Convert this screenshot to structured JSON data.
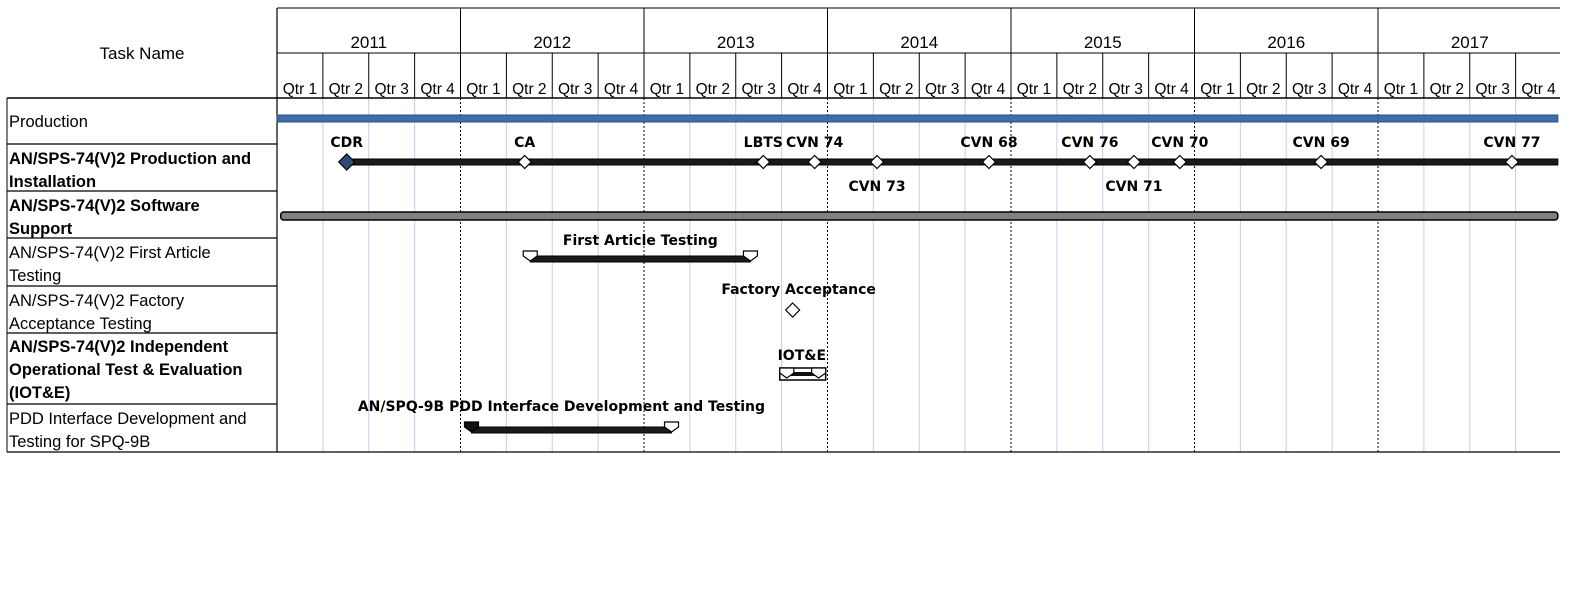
{
  "chart_data": {
    "type": "gantt",
    "header": {
      "task_name_label": "Task Name",
      "years": [
        "2011",
        "2012",
        "2013",
        "2014",
        "2015",
        "2016",
        "2017"
      ],
      "quarter_labels": [
        "Qtr 1",
        "Qtr 2",
        "Qtr 3",
        "Qtr 4"
      ]
    },
    "tasks": [
      {
        "name_lines": [
          "Production"
        ],
        "bold": false
      },
      {
        "name_lines": [
          "AN/SPS-74(V)2 Production and",
          "Installation"
        ],
        "bold": true
      },
      {
        "name_lines": [
          "AN/SPS-74(V)2 Software",
          "Support"
        ],
        "bold": true
      },
      {
        "name_lines": [
          "AN/SPS-74(V)2 First Article",
          "Testing"
        ],
        "bold": false
      },
      {
        "name_lines": [
          "AN/SPS-74(V)2 Factory",
          "Acceptance Testing"
        ],
        "bold": false
      },
      {
        "name_lines": [
          "AN/SPS-74(V)2 Independent",
          "Operational Test & Evaluation",
          "(IOT&E)"
        ],
        "bold": true
      },
      {
        "name_lines": [
          "PDD Interface Development and",
          "Testing for SPQ-9B"
        ],
        "bold": false
      }
    ],
    "bars": [
      {
        "task": 0,
        "start": 2011.0,
        "end": 2017.98,
        "style": "blue"
      },
      {
        "task": 1,
        "start": 2011.36,
        "end": 2017.98,
        "style": "summary"
      },
      {
        "task": 2,
        "start": 2011.02,
        "end": 2017.98,
        "style": "summary-gray"
      },
      {
        "task": 3,
        "start": 2012.38,
        "end": 2013.58,
        "style": "range",
        "label": "First Article Testing",
        "label_at": 2012.98
      },
      {
        "task": 5,
        "start": 2013.74,
        "end": 2013.99,
        "style": "short",
        "label": "IOT&E",
        "label_at": 2013.86
      },
      {
        "task": 6,
        "start": 2012.06,
        "end": 2013.15,
        "style": "range-left-filled",
        "label": "AN/SPQ-9B PDD Interface Development and Testing",
        "label_at": 2012.55
      }
    ],
    "milestones": [
      {
        "task": 1,
        "x": 2011.38,
        "label": "CDR",
        "label_pos": "above",
        "filled": true
      },
      {
        "task": 1,
        "x": 2012.35,
        "label": "CA",
        "label_pos": "above"
      },
      {
        "task": 1,
        "x": 2013.65,
        "label": "LBTS",
        "label_pos": "above"
      },
      {
        "task": 1,
        "x": 2013.93,
        "label": "CVN 74",
        "label_pos": "above"
      },
      {
        "task": 1,
        "x": 2014.27,
        "label": "CVN 73",
        "label_pos": "below"
      },
      {
        "task": 1,
        "x": 2014.88,
        "label": "CVN 68",
        "label_pos": "above"
      },
      {
        "task": 1,
        "x": 2015.43,
        "label": "CVN 76",
        "label_pos": "above"
      },
      {
        "task": 1,
        "x": 2015.67,
        "label": "CVN 71",
        "label_pos": "below"
      },
      {
        "task": 1,
        "x": 2015.92,
        "label": "CVN 70",
        "label_pos": "above"
      },
      {
        "task": 1,
        "x": 2016.69,
        "label": "CVN 69",
        "label_pos": "above"
      },
      {
        "task": 1,
        "x": 2017.73,
        "label": "CVN 77",
        "label_pos": "above"
      },
      {
        "task": 4,
        "x": 2013.81,
        "label": "Factory Acceptance",
        "label_pos": "above",
        "open": true
      }
    ],
    "x_range": [
      2011.0,
      2018.0
    ],
    "colors": {
      "grid": "#c8cce6",
      "border": "#000000",
      "production_bar": "#3e6da8",
      "bar": "#1a1a1a",
      "gray_bar": "#808080"
    }
  }
}
